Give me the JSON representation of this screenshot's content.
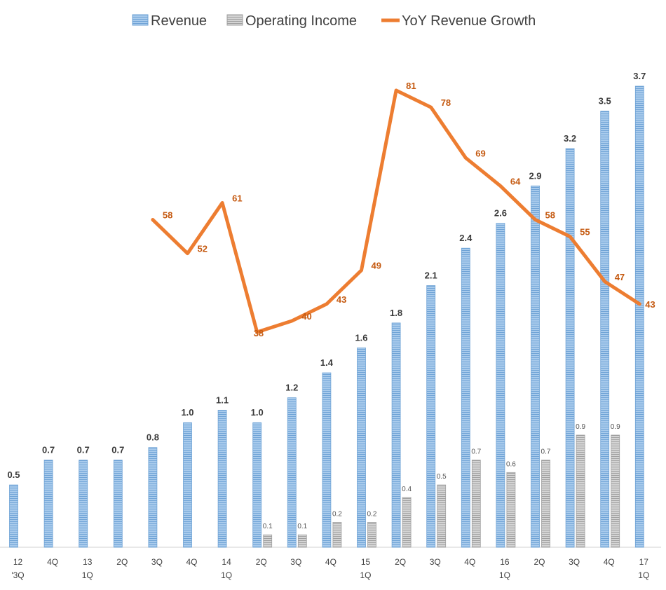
{
  "chart_data": {
    "type": "bar",
    "categories": [
      [
        "12",
        "'3Q"
      ],
      [
        "4Q",
        ""
      ],
      [
        "13",
        "1Q"
      ],
      [
        "2Q",
        ""
      ],
      [
        "3Q",
        ""
      ],
      [
        "4Q",
        ""
      ],
      [
        "14",
        "1Q"
      ],
      [
        "2Q",
        ""
      ],
      [
        "3Q",
        ""
      ],
      [
        "4Q",
        ""
      ],
      [
        "15",
        "1Q"
      ],
      [
        "2Q",
        ""
      ],
      [
        "3Q",
        ""
      ],
      [
        "4Q",
        ""
      ],
      [
        "16",
        "1Q"
      ],
      [
        "2Q",
        ""
      ],
      [
        "3Q",
        ""
      ],
      [
        "4Q",
        ""
      ],
      [
        "17",
        "1Q"
      ]
    ],
    "series": [
      {
        "name": "Revenue",
        "type": "bar",
        "color": "#8fb8e0",
        "values": [
          0.5,
          0.7,
          0.7,
          0.7,
          0.8,
          1.0,
          1.1,
          1.0,
          1.2,
          1.4,
          1.6,
          1.8,
          2.1,
          2.4,
          2.6,
          2.9,
          3.2,
          3.5,
          3.7
        ],
        "labels": [
          "0.5",
          "0.7",
          "0.7",
          "0.7",
          "0.8",
          "1.0",
          "1.1",
          "1.0",
          "1.2",
          "1.4",
          "1.6",
          "1.8",
          "2.1",
          "2.4",
          "2.6",
          "2.9",
          "3.2",
          "3.5",
          "3.7"
        ]
      },
      {
        "name": "Operating Income",
        "type": "bar",
        "color": "#bdbdbd",
        "values": [
          null,
          null,
          null,
          null,
          null,
          null,
          null,
          0.1,
          0.1,
          0.2,
          0.2,
          0.4,
          0.5,
          0.7,
          0.6,
          0.7,
          0.9,
          0.9,
          null
        ],
        "labels": [
          "",
          "",
          "",
          "",
          "",
          "",
          "",
          "0.1",
          "0.1",
          "0.2",
          "0.2",
          "0.4",
          "0.5",
          "0.7",
          "0.6",
          "0.7",
          "0.9",
          "0.9",
          ""
        ]
      },
      {
        "name": "YoY Revenue Growth",
        "type": "line",
        "color": "#ed7d31",
        "values": [
          null,
          null,
          null,
          null,
          58,
          52,
          61,
          38,
          40,
          43,
          49,
          81,
          78,
          69,
          64,
          58,
          55,
          47,
          43
        ],
        "labels": [
          "",
          "",
          "",
          "",
          "58",
          "52",
          "61",
          "38",
          "40",
          "43",
          "49",
          "81",
          "78",
          "69",
          "64",
          "58",
          "55",
          "47",
          "43"
        ]
      }
    ],
    "ylim_bars": [
      0,
      3.7
    ],
    "ylim_line": [
      38,
      81
    ],
    "legend": "top-center",
    "grid": false
  },
  "legend": {
    "revenue": "Revenue",
    "operating_income": "Operating Income",
    "yoy": "YoY Revenue Growth"
  }
}
